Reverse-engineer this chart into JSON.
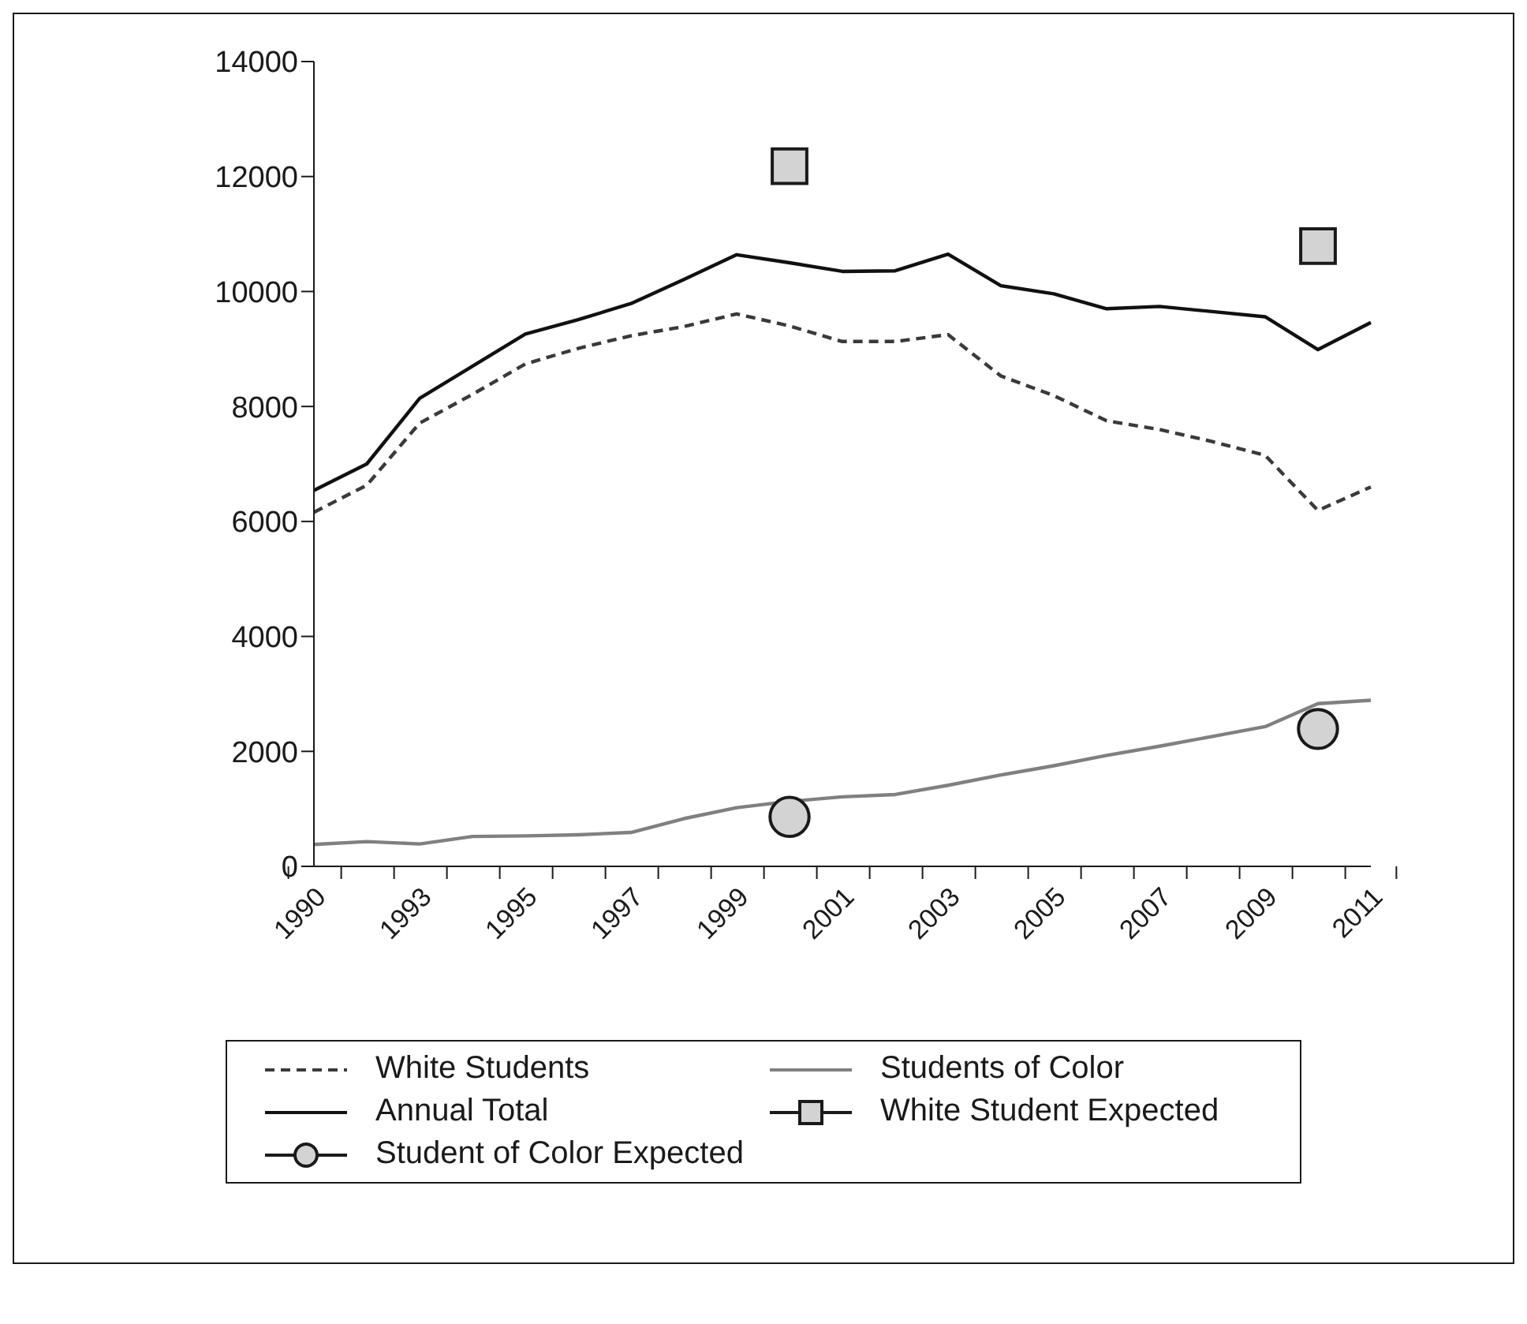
{
  "chart_data": {
    "type": "line",
    "categories": [
      "1990",
      null,
      "1993",
      null,
      "1995",
      null,
      "1997",
      null,
      "1999",
      null,
      "2001",
      null,
      "2003",
      null,
      "2005",
      null,
      "2007",
      null,
      "2009",
      null,
      "2011"
    ],
    "series": [
      {
        "name": "White Students",
        "color": "#3a3a3a",
        "line_style": "dashed",
        "marker": "none",
        "values": [
          6160,
          6630,
          7710,
          8210,
          8740,
          9010,
          9230,
          9390,
          9610,
          9400,
          9130,
          9130,
          9250,
          8530,
          8190,
          7750,
          7600,
          7390,
          7150,
          6190,
          6600
        ]
      },
      {
        "name": "Students of Color",
        "color": "#808080",
        "line_style": "solid",
        "marker": "none",
        "values": [
          380,
          430,
          390,
          520,
          530,
          550,
          590,
          830,
          1020,
          1130,
          1210,
          1250,
          1410,
          1590,
          1750,
          1930,
          2090,
          2260,
          2430,
          2830,
          2890
        ]
      },
      {
        "name": "Annual Total",
        "color": "#111111",
        "line_style": "solid",
        "marker": "none",
        "values": [
          6540,
          7000,
          8140,
          8700,
          9260,
          9510,
          9790,
          10210,
          10640,
          10500,
          10350,
          10360,
          10650,
          10100,
          9960,
          9700,
          9740,
          9650,
          9560,
          8990,
          9460
        ]
      },
      {
        "name": "White Student Expected",
        "type": "scatter",
        "color": "#d3d3d3",
        "marker": "square",
        "values": [
          null,
          null,
          null,
          null,
          null,
          null,
          null,
          null,
          null,
          12180,
          null,
          null,
          null,
          null,
          null,
          null,
          null,
          null,
          null,
          10790,
          null
        ]
      },
      {
        "name": "Student of Color Expected",
        "type": "scatter",
        "color": "#d3d3d3",
        "marker": "circle",
        "values": [
          null,
          null,
          null,
          null,
          null,
          null,
          null,
          null,
          null,
          860,
          null,
          null,
          null,
          null,
          null,
          null,
          null,
          null,
          null,
          2390,
          null
        ]
      }
    ],
    "ylim": [
      0,
      14000
    ],
    "yticks": [
      0,
      2000,
      4000,
      6000,
      8000,
      10000,
      12000,
      14000
    ],
    "grid": false,
    "legend": "bottom"
  }
}
